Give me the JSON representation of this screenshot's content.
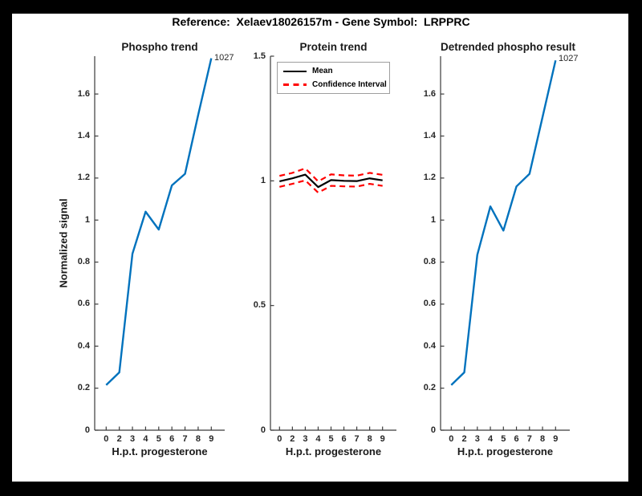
{
  "header": {
    "title": "Reference:  Xelaev18026157m - Gene Symbol:  LRPPRC"
  },
  "colors": {
    "axis": "#3b3b3b",
    "tick_text": "#262626",
    "blue": "#0072BD",
    "red": "#FF0000",
    "black": "#000000",
    "canvas_bg": "#FFFFFF",
    "frame_bg": "#000000"
  },
  "chart_data": [
    {
      "id": "phospho-trend",
      "type": "line",
      "title": "Phospho trend",
      "xlabel": "H.p.t. progesterone",
      "ylabel": "Normalized signal",
      "categories": [
        "0",
        "2",
        "3",
        "4",
        "5",
        "6",
        "7",
        "8",
        "9"
      ],
      "ylim": [
        0,
        1.78
      ],
      "grid": false,
      "yticks": [
        {
          "v": 0,
          "label": "0"
        },
        {
          "v": 0.2,
          "label": "0.2"
        },
        {
          "v": 0.4,
          "label": "0.4"
        },
        {
          "v": 0.6,
          "label": "0.6"
        },
        {
          "v": 0.8,
          "label": "0.8"
        },
        {
          "v": 1,
          "label": "1"
        },
        {
          "v": 1.2,
          "label": "1.2"
        },
        {
          "v": 1.4,
          "label": "1.4"
        },
        {
          "v": 1.6,
          "label": "1.6"
        }
      ],
      "series": [
        {
          "name": "phospho-signal",
          "color": "#0072BD",
          "width": 2.4,
          "dash": null,
          "values": [
            0.215,
            0.275,
            0.84,
            1.04,
            0.955,
            1.165,
            1.22,
            1.5,
            1.77
          ]
        }
      ],
      "annotation": {
        "text": "1027",
        "at_category": "9",
        "at_value": 1.77
      }
    },
    {
      "id": "protein-trend",
      "type": "line",
      "title": "Protein trend",
      "xlabel": "H.p.t. progesterone",
      "ylabel": "",
      "categories": [
        "0",
        "2",
        "3",
        "4",
        "5",
        "6",
        "7",
        "8",
        "9"
      ],
      "ylim": [
        0,
        1.5
      ],
      "grid": false,
      "yticks": [
        {
          "v": 0,
          "label": "0"
        },
        {
          "v": 0.5,
          "label": "0.5"
        },
        {
          "v": 1,
          "label": "1"
        },
        {
          "v": 1.5,
          "label": "1.5"
        }
      ],
      "legend": {
        "position": "top-left",
        "items": [
          {
            "label": "Mean",
            "style": "solid-black"
          },
          {
            "label": "Confidence Interval",
            "style": "dashed-red"
          }
        ]
      },
      "series": [
        {
          "name": "mean",
          "color": "#000000",
          "width": 2.2,
          "dash": null,
          "values": [
            0.998,
            1.01,
            1.025,
            0.975,
            1.003,
            1.0,
            0.999,
            1.01,
            1.002
          ]
        },
        {
          "name": "ci-upper",
          "color": "#FF0000",
          "width": 2.2,
          "dash": "7 5",
          "values": [
            1.02,
            1.032,
            1.05,
            0.998,
            1.026,
            1.022,
            1.021,
            1.032,
            1.024
          ]
        },
        {
          "name": "ci-lower",
          "color": "#FF0000",
          "width": 2.2,
          "dash": "7 5",
          "values": [
            0.976,
            0.988,
            1.002,
            0.953,
            0.98,
            0.978,
            0.977,
            0.988,
            0.98
          ]
        }
      ]
    },
    {
      "id": "detrended-phospho",
      "type": "line",
      "title": "Detrended phospho result",
      "xlabel": "H.p.t. progesterone",
      "ylabel": "",
      "categories": [
        "0",
        "2",
        "3",
        "4",
        "5",
        "6",
        "7",
        "8",
        "9"
      ],
      "ylim": [
        0,
        1.78
      ],
      "grid": false,
      "yticks": [
        {
          "v": 0,
          "label": "0"
        },
        {
          "v": 0.2,
          "label": "0.2"
        },
        {
          "v": 0.4,
          "label": "0.4"
        },
        {
          "v": 0.6,
          "label": "0.6"
        },
        {
          "v": 0.8,
          "label": "0.8"
        },
        {
          "v": 1,
          "label": "1"
        },
        {
          "v": 1.2,
          "label": "1.2"
        },
        {
          "v": 1.4,
          "label": "1.4"
        },
        {
          "v": 1.6,
          "label": "1.6"
        }
      ],
      "series": [
        {
          "name": "detrended-signal",
          "color": "#0072BD",
          "width": 2.4,
          "dash": null,
          "values": [
            0.215,
            0.275,
            0.835,
            1.065,
            0.95,
            1.16,
            1.22,
            1.49,
            1.76
          ]
        }
      ],
      "annotation": {
        "text": "1027",
        "at_category": "9",
        "at_value": 1.76
      }
    }
  ]
}
